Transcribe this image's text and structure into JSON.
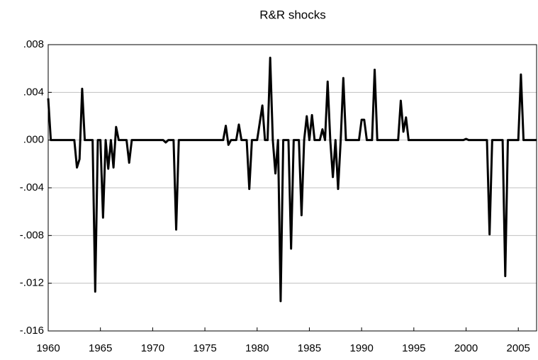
{
  "chart_data": {
    "type": "line",
    "title": "R&R shocks",
    "x": [
      1960.0,
      1960.25,
      1962.5,
      1962.75,
      1963.0,
      1963.25,
      1963.5,
      1964.25,
      1964.5,
      1964.75,
      1965.0,
      1965.25,
      1965.5,
      1965.75,
      1966.0,
      1966.25,
      1966.5,
      1966.75,
      1967.5,
      1967.75,
      1968.0,
      1971.0,
      1971.25,
      1971.5,
      1972.0,
      1972.25,
      1972.5,
      1976.75,
      1977.0,
      1977.25,
      1977.5,
      1978.0,
      1978.25,
      1978.5,
      1979.0,
      1979.25,
      1979.5,
      1980.0,
      1980.5,
      1980.75,
      1981.0,
      1981.25,
      1981.5,
      1981.75,
      1982.0,
      1982.25,
      1982.5,
      1983.0,
      1983.25,
      1983.5,
      1984.0,
      1984.25,
      1984.5,
      1984.75,
      1985.0,
      1985.25,
      1985.5,
      1986.0,
      1986.25,
      1986.5,
      1986.75,
      1987.0,
      1987.25,
      1987.5,
      1987.75,
      1988.0,
      1988.25,
      1988.5,
      1989.75,
      1990.0,
      1990.25,
      1990.5,
      1991.0,
      1991.25,
      1991.5,
      1993.5,
      1993.75,
      1994.0,
      1994.25,
      1994.5,
      1999.75,
      2000.0,
      2000.25,
      2002.0,
      2002.25,
      2002.5,
      2003.5,
      2003.75,
      2004.0,
      2005.0,
      2005.25,
      2005.5,
      2006.75
    ],
    "series": [
      {
        "color": "#000000",
        "values": [
          0.0035,
          0,
          0,
          -0.0023,
          -0.0016,
          0.0043,
          0,
          0,
          -0.0127,
          0,
          0,
          -0.0065,
          0,
          -0.0024,
          0,
          -0.0023,
          0.0011,
          0,
          0,
          -0.0019,
          0,
          0,
          -0.0002,
          0,
          0,
          -0.0075,
          0,
          0,
          0.0012,
          -0.0004,
          0,
          0,
          0.0013,
          0,
          0,
          -0.0041,
          0,
          0,
          0.0029,
          0,
          0,
          0.0069,
          0,
          -0.0028,
          0,
          -0.0135,
          0,
          0,
          -0.0091,
          0,
          0,
          -0.0063,
          0,
          0.002,
          0,
          0.0021,
          0,
          0,
          0.0009,
          0,
          0.0049,
          0,
          -0.0031,
          0,
          -0.0041,
          0,
          0.0052,
          0,
          0,
          0.0017,
          0.0017,
          0,
          0,
          0.0059,
          0,
          0,
          0.0033,
          0.0007,
          0.0019,
          0,
          0,
          0.0001,
          0,
          0,
          -0.0079,
          0,
          0,
          -0.0114,
          0,
          0,
          0.0055,
          0,
          0
        ]
      }
    ],
    "xlim": [
      1960,
      2006.75
    ],
    "xticks": [
      1960,
      1965,
      1970,
      1975,
      1980,
      1985,
      1990,
      1995,
      2000,
      2005
    ],
    "ylim": [
      -0.016,
      0.008
    ],
    "yticks": [
      {
        "value": -0.016,
        "label": "-.016"
      },
      {
        "value": -0.012,
        "label": "-.012"
      },
      {
        "value": -0.008,
        "label": "-.008"
      },
      {
        "value": -0.004,
        "label": "-.004"
      },
      {
        "value": 0,
        "label": ".000"
      },
      {
        "value": 0.004,
        "label": ".004"
      },
      {
        "value": 0.008,
        "label": ".008"
      }
    ],
    "grid": true
  }
}
